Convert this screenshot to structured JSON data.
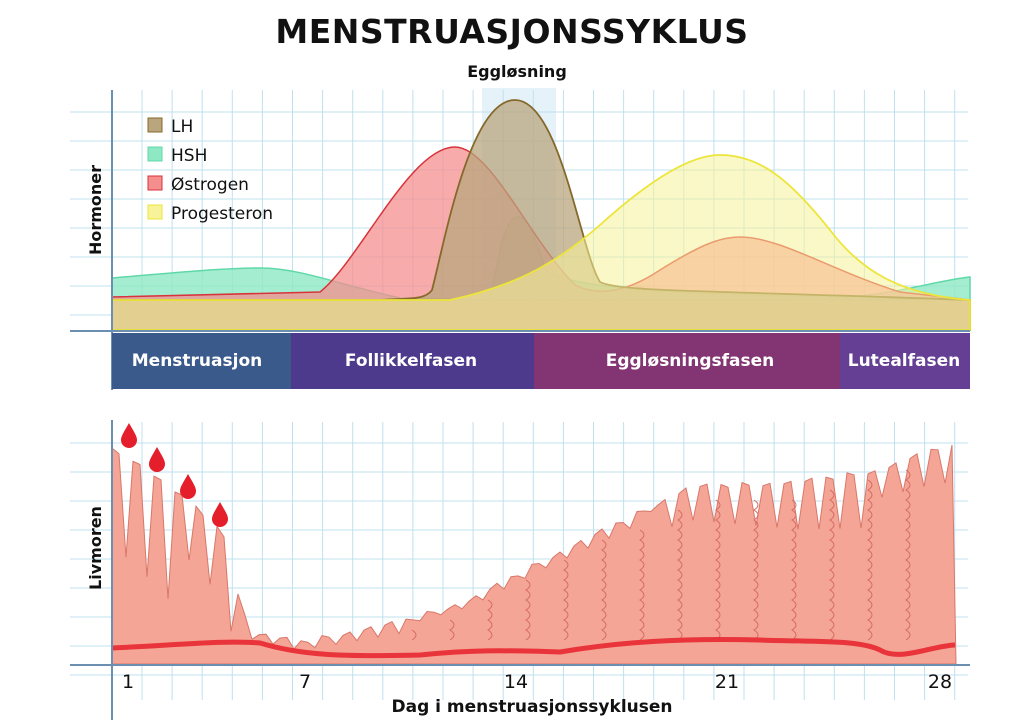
{
  "title": "MENSTRUASJONSSYKLUS",
  "subtitle": "Eggløsning",
  "hormone_panel": {
    "ylabel": "Hormoner",
    "legend": [
      {
        "label": "LH",
        "color": "#b9a67e"
      },
      {
        "label": "HSH",
        "color": "#8fe8c4"
      },
      {
        "label": "Østrogen",
        "color": "#f58f8f"
      },
      {
        "label": "Progesteron",
        "color": "#f8f39a"
      }
    ]
  },
  "phases": [
    {
      "label": "Menstruasjon",
      "color": "#3a5a8c"
    },
    {
      "label": "Follikkelfasen",
      "color": "#4e3a8c"
    },
    {
      "label": "Eggløsningsfasen",
      "color": "#823572"
    },
    {
      "label": "Lutealfasen",
      "color": "#643f94"
    }
  ],
  "uterus_panel": {
    "ylabel": "Livmoren",
    "xlabel": "Dag i menstruasjonssyklusen",
    "x_ticks": [
      "1",
      "7",
      "14",
      "21",
      "28"
    ],
    "tissue_color": "#f4a595",
    "vessel_color": "#e8343a"
  }
}
